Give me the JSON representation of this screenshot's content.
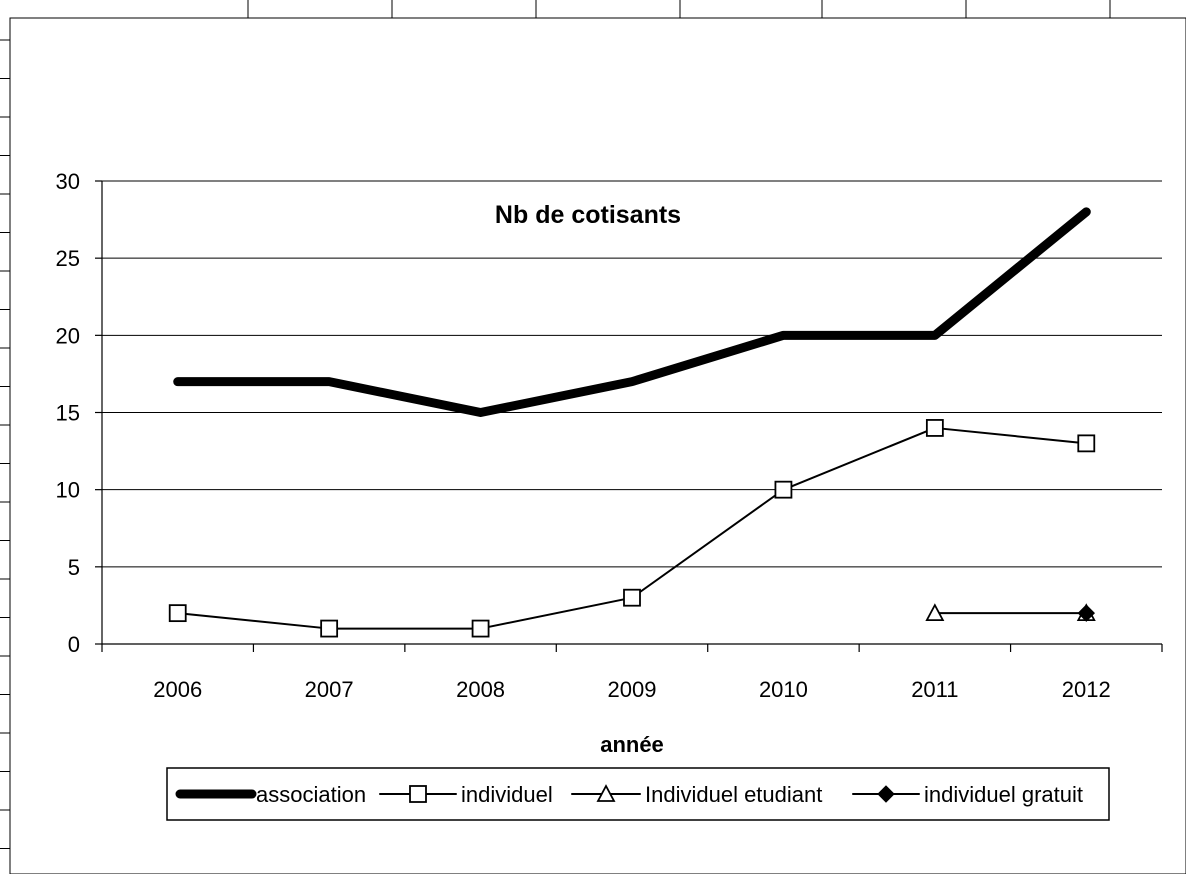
{
  "chart_data": {
    "type": "line",
    "title": "Nb de cotisants",
    "xlabel": "année",
    "ylabel": "",
    "categories": [
      "2006",
      "2007",
      "2008",
      "2009",
      "2010",
      "2011",
      "2012"
    ],
    "ylim": [
      0,
      30
    ],
    "yticks": [
      0,
      5,
      10,
      15,
      20,
      25,
      30
    ],
    "grid": true,
    "legend_position": "bottom",
    "series": [
      {
        "name": "association",
        "marker": "none",
        "line": "thick",
        "color": "#000000",
        "values": [
          17,
          17,
          15,
          17,
          20,
          20,
          28
        ]
      },
      {
        "name": "individuel",
        "marker": "square",
        "line": "thin",
        "color": "#000000",
        "values": [
          2,
          1,
          1,
          3,
          10,
          14,
          13
        ]
      },
      {
        "name": "Individuel etudiant",
        "marker": "triangle",
        "line": "thin",
        "color": "#000000",
        "values": [
          null,
          null,
          null,
          null,
          null,
          2,
          2
        ]
      },
      {
        "name": "individuel gratuit",
        "marker": "diamond",
        "line": "thin",
        "color": "#000000",
        "values": [
          null,
          null,
          null,
          null,
          null,
          null,
          2
        ]
      }
    ]
  }
}
